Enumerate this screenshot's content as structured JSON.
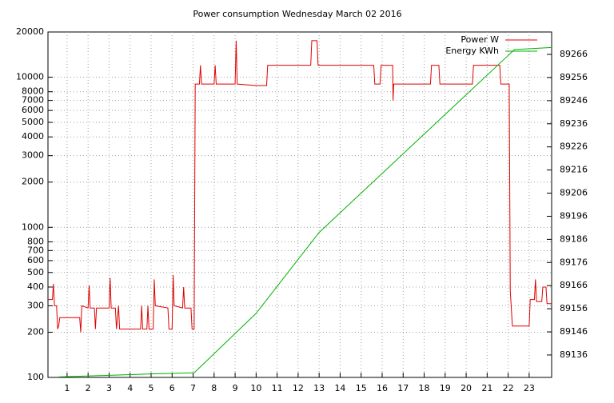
{
  "chart_data": {
    "type": "line",
    "title": "Power consumption Wednesday March 02 2016",
    "xlim": [
      0.09,
      24.07
    ],
    "xticks": [
      1,
      2,
      3,
      4,
      5,
      6,
      7,
      8,
      9,
      10,
      11,
      12,
      13,
      14,
      15,
      16,
      17,
      18,
      19,
      20,
      21,
      22,
      23
    ],
    "ylim": [
      100,
      20000
    ],
    "ylog": true,
    "yticks": [
      100,
      200,
      300,
      400,
      500,
      600,
      700,
      800,
      1000,
      2000,
      3000,
      4000,
      5000,
      6000,
      7000,
      8000,
      10000,
      20000
    ],
    "y2lim": [
      89126.3,
      89275.7
    ],
    "y2ticks": [
      89136,
      89146,
      89156,
      89166,
      89176,
      89186,
      89196,
      89206,
      89216,
      89226,
      89236,
      89246,
      89256,
      89266
    ],
    "grid": true,
    "legend": "top-right",
    "series": [
      {
        "name": "Power W",
        "color": "#e00000",
        "axis": "y",
        "x": [
          0.09,
          0.3,
          0.35,
          0.4,
          0.5,
          0.55,
          0.6,
          0.65,
          1.6,
          1.65,
          1.7,
          2.0,
          2.05,
          2.1,
          2.3,
          2.35,
          2.4,
          3.0,
          3.05,
          3.1,
          3.3,
          3.35,
          3.45,
          3.5,
          4.5,
          4.55,
          4.6,
          4.8,
          4.85,
          4.9,
          5.1,
          5.15,
          5.2,
          5.8,
          5.85,
          6.0,
          6.05,
          6.1,
          6.5,
          6.55,
          6.6,
          6.9,
          6.95,
          7.05,
          7.1,
          7.3,
          7.35,
          7.4,
          8.0,
          8.05,
          8.1,
          9.0,
          9.05,
          9.1,
          10.0,
          10.5,
          10.55,
          12.6,
          12.65,
          12.9,
          12.95,
          15.6,
          15.65,
          15.9,
          15.95,
          16.5,
          16.52,
          16.55,
          18.3,
          18.35,
          18.7,
          18.75,
          20.3,
          20.35,
          21.6,
          21.65,
          22.05,
          22.1,
          22.2,
          23.0,
          23.05,
          23.25,
          23.3,
          23.35,
          23.6,
          23.65,
          23.8,
          23.85,
          24.07
        ],
        "values": [
          330,
          330,
          420,
          300,
          300,
          210,
          220,
          250,
          250,
          200,
          300,
          290,
          410,
          290,
          290,
          210,
          290,
          290,
          460,
          290,
          290,
          210,
          300,
          210,
          210,
          300,
          210,
          210,
          300,
          210,
          210,
          450,
          300,
          290,
          210,
          210,
          480,
          300,
          290,
          400,
          290,
          290,
          210,
          210,
          9000,
          9000,
          12000,
          9000,
          9000,
          12000,
          9000,
          9000,
          17500,
          9000,
          8800,
          8800,
          12000,
          12000,
          17500,
          17500,
          12000,
          12000,
          9000,
          9000,
          12000,
          12000,
          7000,
          9000,
          9000,
          12000,
          12000,
          9000,
          9000,
          12000,
          12000,
          9000,
          9000,
          380,
          220,
          220,
          330,
          330,
          450,
          320,
          320,
          400,
          400,
          310,
          310
        ]
      },
      {
        "name": "Energy KWh",
        "color": "#00b000",
        "axis": "y2",
        "x": [
          0.6,
          3,
          5,
          7.05,
          10,
          13,
          22.3,
          24.07
        ],
        "values": [
          89126.5,
          89127.2,
          89127.8,
          89128.3,
          89154,
          89189,
          89268.1,
          89269
        ]
      }
    ]
  }
}
